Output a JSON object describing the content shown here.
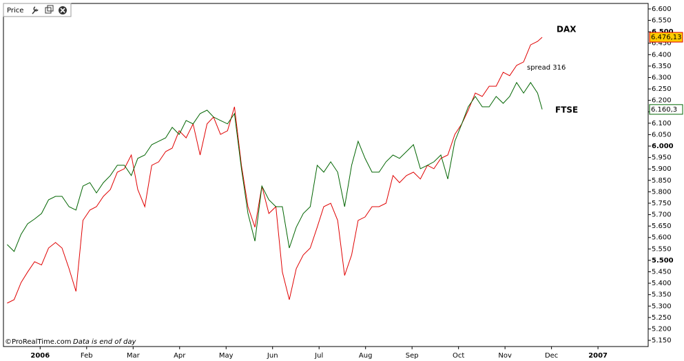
{
  "chart_data": {
    "type": "line",
    "panel_title": "Price",
    "source": "©ProRealTime.com",
    "note": "Data is end of day",
    "annotation": "spread 316",
    "xlim": [
      -0.79,
      13.08
    ],
    "xticks": [
      {
        "value": 0,
        "label": "2006"
      },
      {
        "value": 1,
        "label": "Feb"
      },
      {
        "value": 2,
        "label": "Mar"
      },
      {
        "value": 3,
        "label": "Apr"
      },
      {
        "value": 4,
        "label": "May"
      },
      {
        "value": 5,
        "label": "Jun"
      },
      {
        "value": 6,
        "label": "Jul"
      },
      {
        "value": 7,
        "label": "Aug"
      },
      {
        "value": 8,
        "label": "Sep"
      },
      {
        "value": 9,
        "label": "Oct"
      },
      {
        "value": 10,
        "label": "Nov"
      },
      {
        "value": 11,
        "label": "Dec"
      },
      {
        "value": 12,
        "label": "2007"
      }
    ],
    "ylim": [
      5123,
      6624
    ],
    "yticks": [
      {
        "value": 5150,
        "label": "5.150"
      },
      {
        "value": 5200,
        "label": "5.200"
      },
      {
        "value": 5250,
        "label": "5.250"
      },
      {
        "value": 5300,
        "label": "5.300"
      },
      {
        "value": 5350,
        "label": "5.350"
      },
      {
        "value": 5400,
        "label": "5.400"
      },
      {
        "value": 5450,
        "label": "5.450"
      },
      {
        "value": 5500,
        "label": "5.500"
      },
      {
        "value": 5550,
        "label": "5.550"
      },
      {
        "value": 5600,
        "label": "5.600"
      },
      {
        "value": 5650,
        "label": "5.650"
      },
      {
        "value": 5700,
        "label": "5.700"
      },
      {
        "value": 5750,
        "label": "5.750"
      },
      {
        "value": 5800,
        "label": "5.800"
      },
      {
        "value": 5850,
        "label": "5.850"
      },
      {
        "value": 5900,
        "label": "5.900"
      },
      {
        "value": 5950,
        "label": "5.950"
      },
      {
        "value": 6000,
        "label": "6.000"
      },
      {
        "value": 6050,
        "label": "6.050"
      },
      {
        "value": 6100,
        "label": "6.100"
      },
      {
        "value": 6150,
        "label": "6.150"
      },
      {
        "value": 6200,
        "label": "6.200"
      },
      {
        "value": 6250,
        "label": "6.250"
      },
      {
        "value": 6300,
        "label": "6.300"
      },
      {
        "value": 6350,
        "label": "6.350"
      },
      {
        "value": 6400,
        "label": "6.400"
      },
      {
        "value": 6450,
        "label": "6.450"
      },
      {
        "value": 6500,
        "label": "6.500"
      },
      {
        "value": 6550,
        "label": "6.550"
      },
      {
        "value": 6600,
        "label": "6.600"
      }
    ],
    "x": [
      -0.71,
      -0.56,
      -0.41,
      -0.27,
      -0.12,
      0.03,
      0.18,
      0.33,
      0.47,
      0.62,
      0.77,
      0.92,
      1.07,
      1.21,
      1.36,
      1.51,
      1.66,
      1.81,
      1.96,
      2.1,
      2.25,
      2.4,
      2.55,
      2.7,
      2.84,
      2.99,
      3.14,
      3.29,
      3.44,
      3.59,
      3.73,
      3.88,
      4.03,
      4.18,
      4.33,
      4.47,
      4.62,
      4.77,
      4.92,
      5.07,
      5.21,
      5.36,
      5.51,
      5.66,
      5.81,
      5.96,
      6.1,
      6.25,
      6.4,
      6.55,
      6.7,
      6.84,
      6.99,
      7.14,
      7.29,
      7.44,
      7.59,
      7.73,
      7.88,
      8.03,
      8.18,
      8.33,
      8.47,
      8.62,
      8.77,
      8.92,
      9.07,
      9.21,
      9.36,
      9.51,
      9.66,
      9.81,
      9.96,
      10.1,
      10.25,
      10.4,
      10.55,
      10.7,
      10.8
    ],
    "series": [
      {
        "name": "DAX",
        "color": "#e00000",
        "last_label": "6.476,13",
        "tag_color": "#ffcc00",
        "values": [
          5313,
          5328,
          5403,
          5449,
          5494,
          5480,
          5554,
          5578,
          5554,
          5464,
          5364,
          5675,
          5720,
          5735,
          5780,
          5810,
          5886,
          5901,
          5961,
          5810,
          5735,
          5916,
          5931,
          5976,
          5991,
          6067,
          6036,
          6097,
          5961,
          6097,
          6127,
          6051,
          6067,
          6172,
          5916,
          5735,
          5645,
          5825,
          5705,
          5735,
          5449,
          5328,
          5464,
          5524,
          5554,
          5645,
          5735,
          5750,
          5675,
          5434,
          5524,
          5675,
          5690,
          5735,
          5735,
          5750,
          5871,
          5840,
          5871,
          5886,
          5856,
          5916,
          5901,
          5946,
          5961,
          6051,
          6097,
          6157,
          6232,
          6217,
          6262,
          6262,
          6323,
          6308,
          6353,
          6368,
          6443,
          6458,
          6476.13
        ]
      },
      {
        "name": "FTSE",
        "color": "#006400",
        "last_label": "6.160,3",
        "tag_color": "#ffffff",
        "values": [
          5569,
          5539,
          5614,
          5660,
          5681,
          5705,
          5765,
          5780,
          5780,
          5735,
          5720,
          5825,
          5840,
          5795,
          5840,
          5871,
          5916,
          5916,
          5871,
          5946,
          5961,
          6006,
          6021,
          6036,
          6082,
          6051,
          6112,
          6097,
          6142,
          6157,
          6127,
          6112,
          6097,
          6142,
          5901,
          5705,
          5584,
          5825,
          5765,
          5735,
          5735,
          5554,
          5645,
          5705,
          5735,
          5916,
          5886,
          5931,
          5886,
          5735,
          5916,
          6021,
          5946,
          5886,
          5886,
          5931,
          5961,
          5946,
          5976,
          6006,
          5901,
          5916,
          5931,
          5961,
          5856,
          6021,
          6097,
          6172,
          6217,
          6172,
          6172,
          6217,
          6187,
          6217,
          6278,
          6232,
          6278,
          6232,
          6160.3
        ]
      }
    ]
  }
}
